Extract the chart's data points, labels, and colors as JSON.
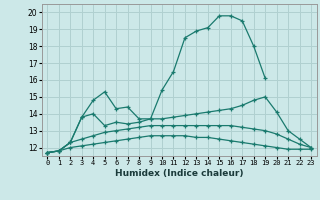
{
  "xlabel": "Humidex (Indice chaleur)",
  "background_color": "#cce8e8",
  "grid_color": "#b0d0d0",
  "line_color": "#1a7a6e",
  "xlim": [
    -0.5,
    23.5
  ],
  "ylim": [
    11.5,
    20.5
  ],
  "xticks": [
    0,
    1,
    2,
    3,
    4,
    5,
    6,
    7,
    8,
    9,
    10,
    11,
    12,
    13,
    14,
    15,
    16,
    17,
    18,
    19,
    20,
    21,
    22,
    23
  ],
  "yticks": [
    12,
    13,
    14,
    15,
    16,
    17,
    18,
    19,
    20
  ],
  "series": [
    {
      "x": [
        0,
        1,
        2,
        3,
        4,
        5,
        6,
        7,
        8,
        9,
        10,
        11,
        12,
        13,
        14,
        15,
        16,
        17,
        18,
        19
      ],
      "y": [
        11.7,
        11.8,
        12.3,
        13.8,
        14.8,
        15.3,
        14.3,
        14.4,
        13.7,
        13.7,
        15.4,
        16.5,
        18.5,
        18.9,
        19.1,
        19.8,
        19.8,
        19.5,
        18.0,
        16.1
      ]
    },
    {
      "x": [
        0,
        1,
        2,
        3,
        4,
        5,
        6,
        7,
        8,
        9,
        10,
        11,
        12,
        13,
        14,
        15,
        16,
        17,
        18,
        19,
        20,
        21,
        22,
        23
      ],
      "y": [
        11.7,
        11.8,
        12.3,
        13.8,
        14.0,
        13.3,
        13.5,
        13.4,
        13.5,
        13.7,
        13.7,
        13.8,
        13.9,
        14.0,
        14.1,
        14.2,
        14.3,
        14.5,
        14.8,
        15.0,
        14.1,
        13.0,
        12.5,
        12.0
      ]
    },
    {
      "x": [
        0,
        1,
        2,
        3,
        4,
        5,
        6,
        7,
        8,
        9,
        10,
        11,
        12,
        13,
        14,
        15,
        16,
        17,
        18,
        19,
        20,
        21,
        22,
        23
      ],
      "y": [
        11.7,
        11.8,
        12.3,
        12.5,
        12.7,
        12.9,
        13.0,
        13.1,
        13.2,
        13.3,
        13.3,
        13.3,
        13.3,
        13.3,
        13.3,
        13.3,
        13.3,
        13.2,
        13.1,
        13.0,
        12.8,
        12.5,
        12.2,
        12.0
      ]
    },
    {
      "x": [
        0,
        1,
        2,
        3,
        4,
        5,
        6,
        7,
        8,
        9,
        10,
        11,
        12,
        13,
        14,
        15,
        16,
        17,
        18,
        19,
        20,
        21,
        22,
        23
      ],
      "y": [
        11.7,
        11.8,
        12.0,
        12.1,
        12.2,
        12.3,
        12.4,
        12.5,
        12.6,
        12.7,
        12.7,
        12.7,
        12.7,
        12.6,
        12.6,
        12.5,
        12.4,
        12.3,
        12.2,
        12.1,
        12.0,
        11.9,
        11.9,
        11.9
      ]
    }
  ]
}
